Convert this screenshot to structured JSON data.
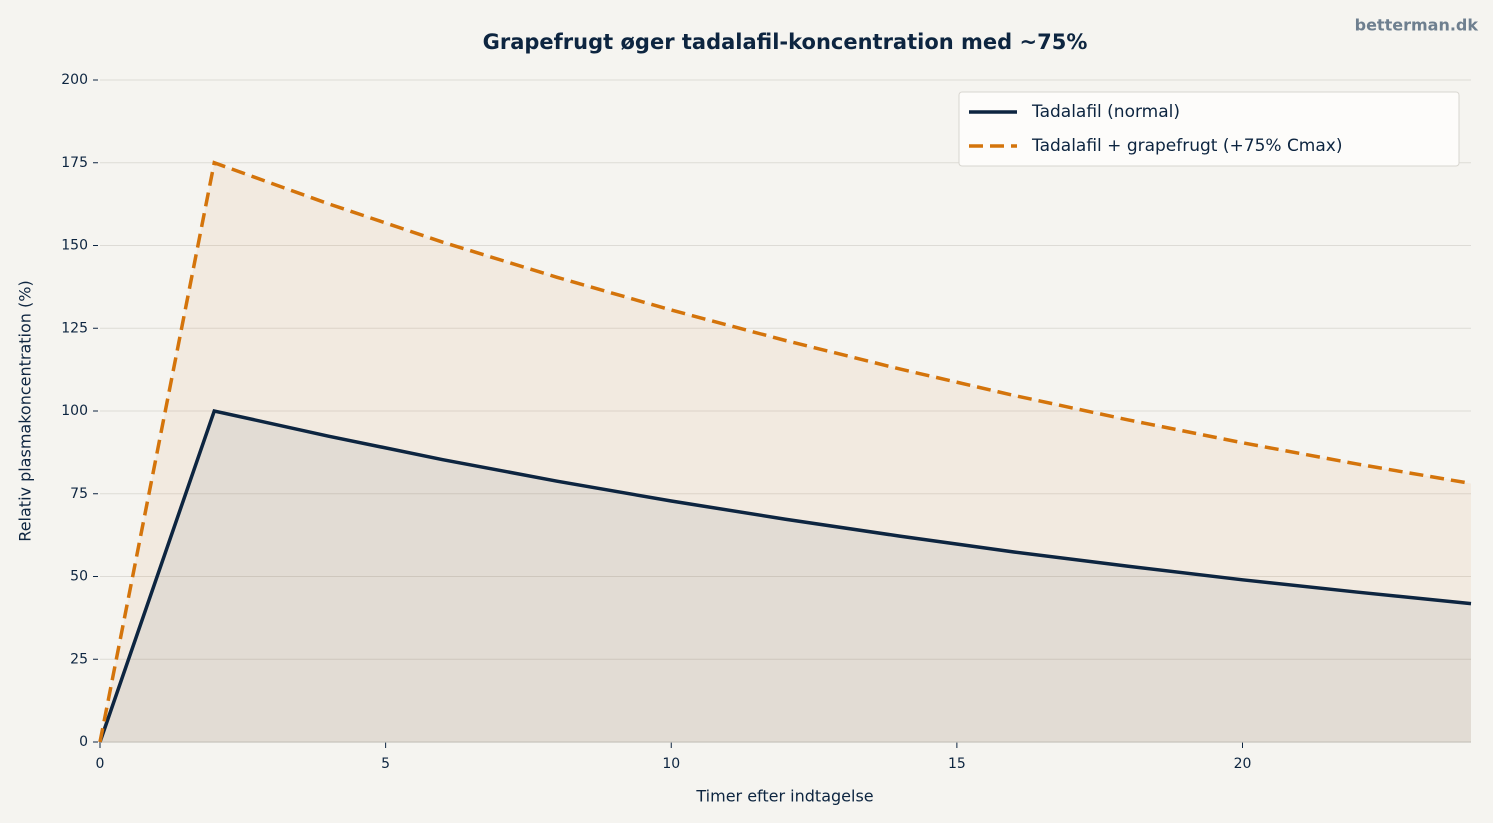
{
  "chart_data": {
    "type": "line",
    "title": "Grapefrugt øger tadalafil-koncentration med ~75%",
    "watermark": "betterman.dk",
    "x_label": "Timer efter indtagelse",
    "y_label": "Relativ plasmakoncentration (%)",
    "x": [
      0,
      2,
      4,
      6,
      8,
      10,
      12,
      14,
      16,
      18,
      20,
      22,
      24
    ],
    "series": [
      {
        "name": "Tadalafil (normal)",
        "color": "#0d2540",
        "linestyle": "solid",
        "values": [
          0,
          100,
          92.4,
          85.3,
          78.8,
          72.8,
          67.3,
          62.2,
          57.4,
          53.1,
          49.0,
          45.3,
          41.8
        ]
      },
      {
        "name": "Tadalafil + grapefrugt (+75% Cmax)",
        "color": "#d4740b",
        "linestyle": "dashed",
        "values": [
          0,
          175,
          162.6,
          151.0,
          140.4,
          130.5,
          121.3,
          112.7,
          104.7,
          97.3,
          90.4,
          84.0,
          78.1
        ]
      }
    ],
    "xlim": [
      0,
      24
    ],
    "xticks": [
      0,
      5,
      10,
      15,
      20
    ],
    "ylim": [
      0,
      200
    ],
    "yticks": [
      0,
      25,
      50,
      75,
      100,
      125,
      150,
      175,
      200
    ],
    "grid": true,
    "fill_under": true,
    "legend": "upper right"
  }
}
